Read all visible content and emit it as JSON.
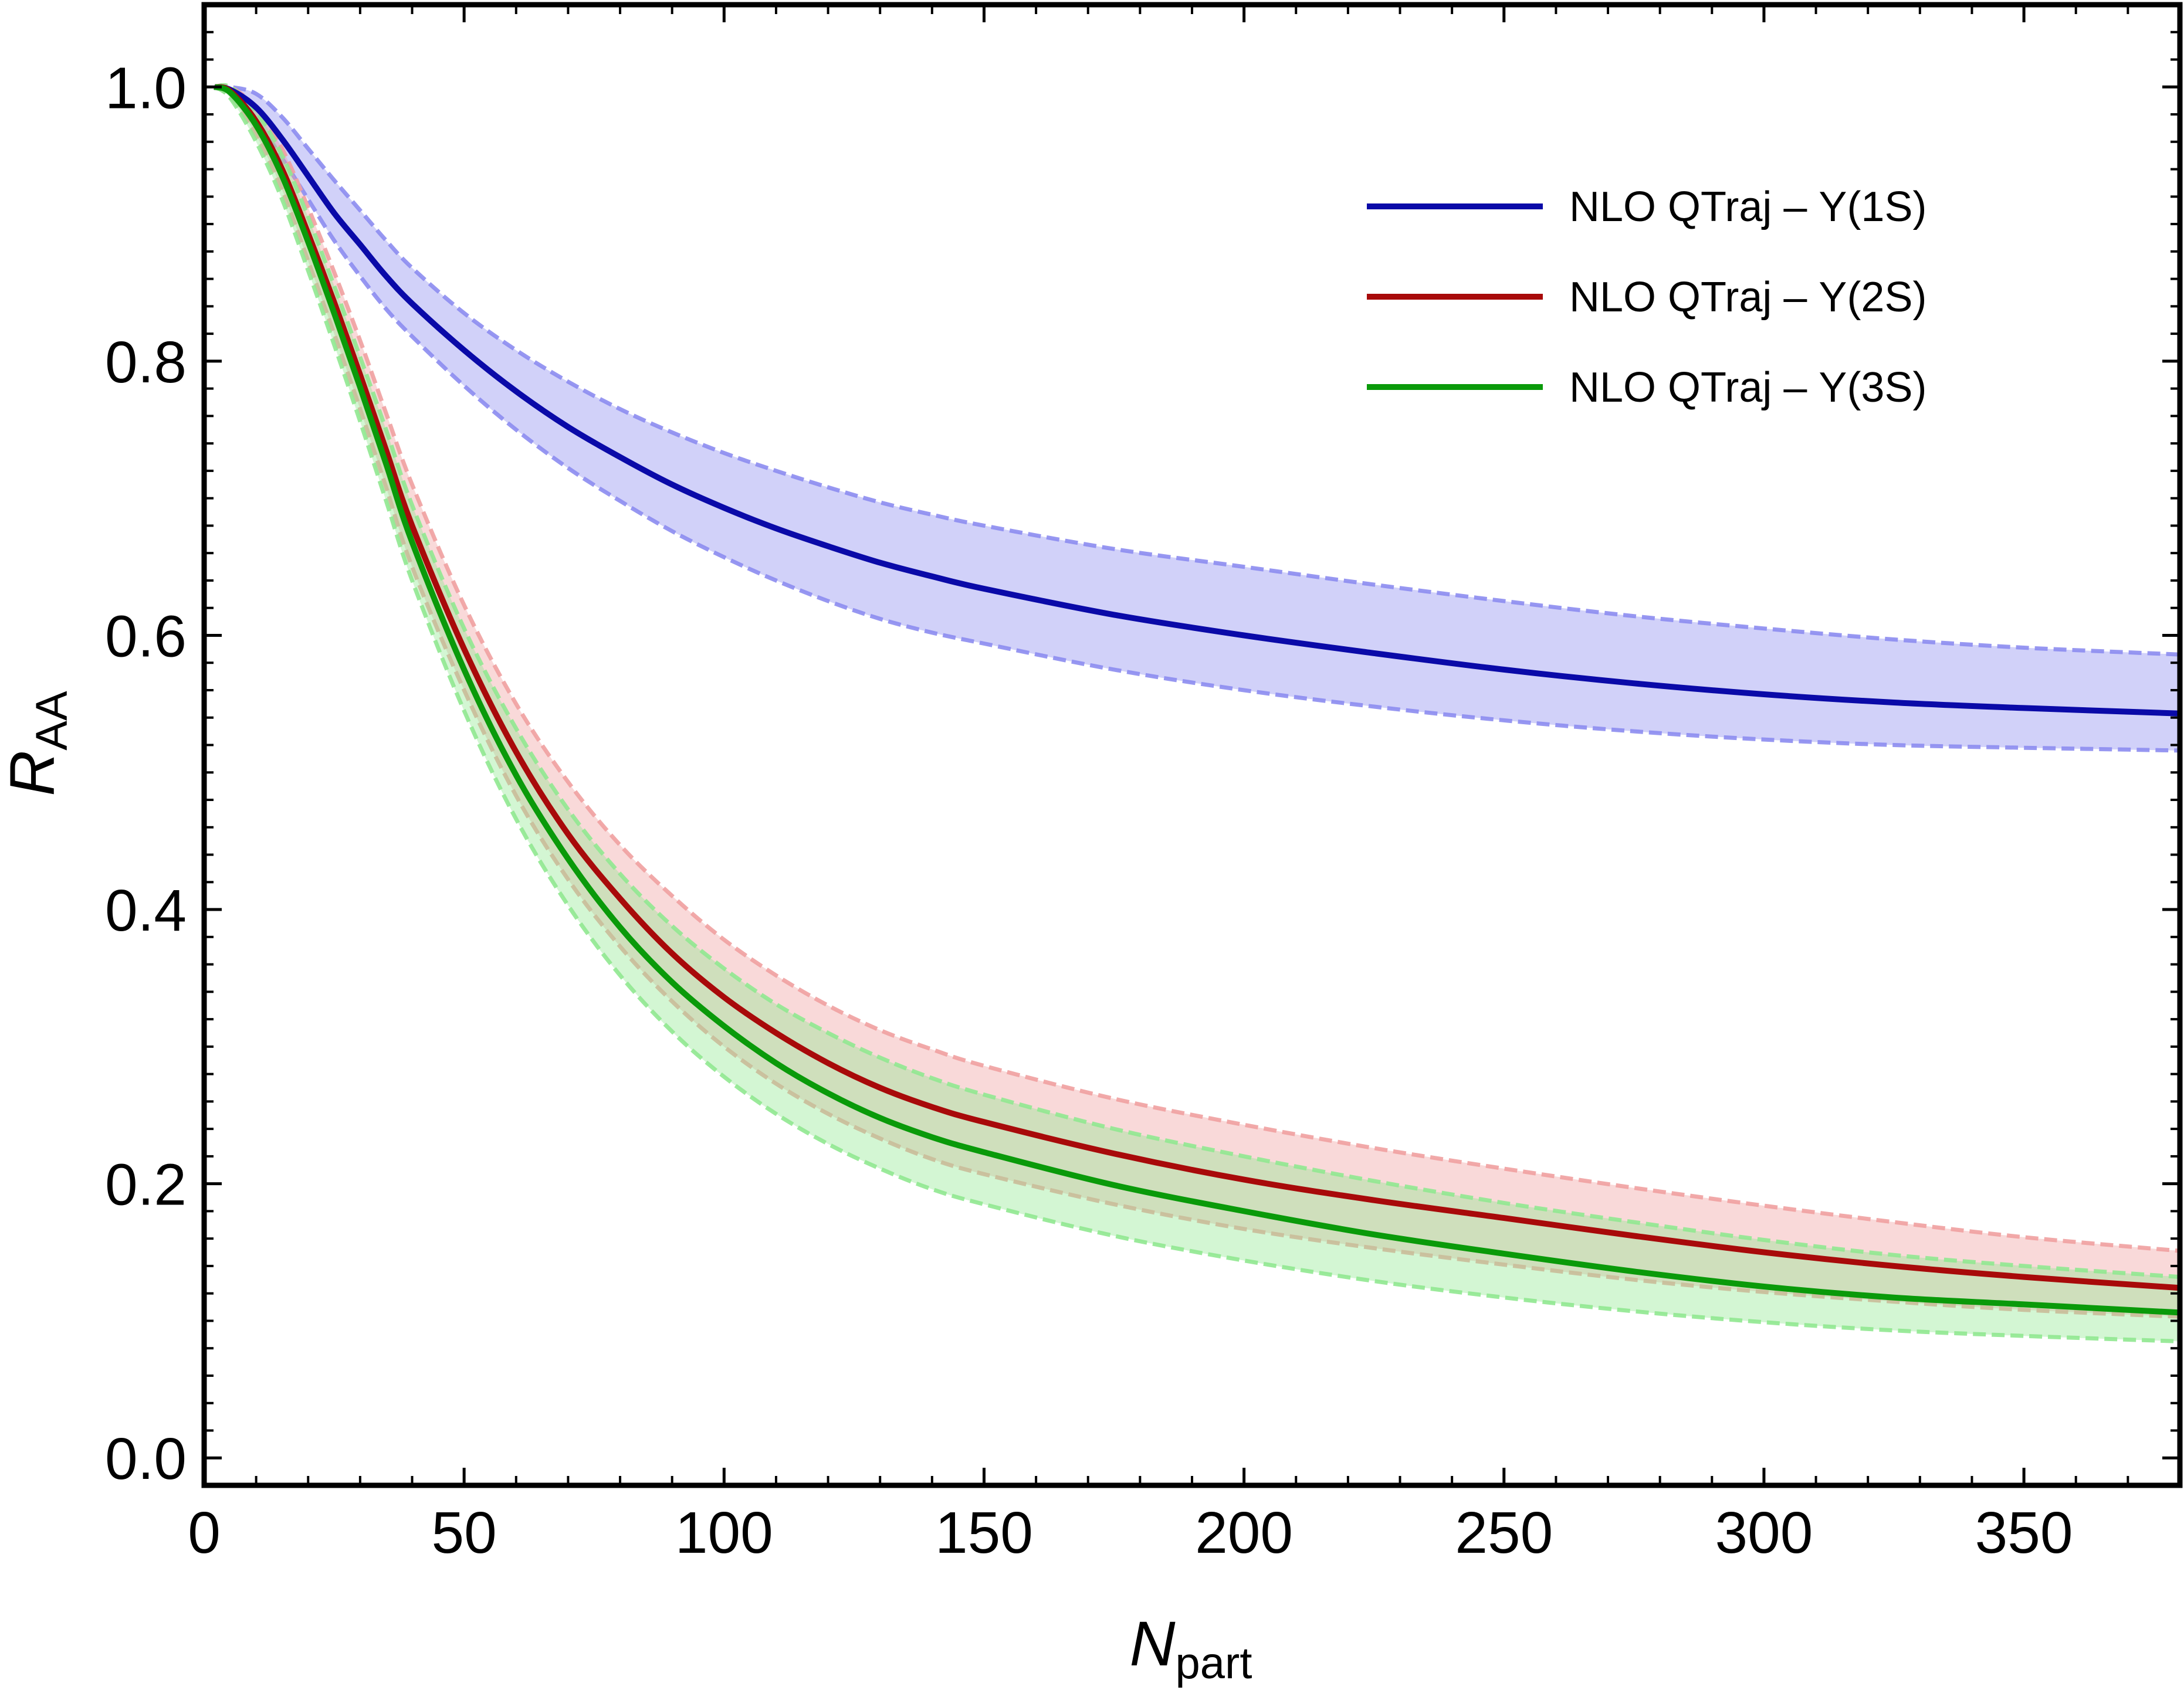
{
  "chart_data": {
    "type": "line",
    "xlabel": "N",
    "xlabel_subscript": "part",
    "ylabel": "R",
    "ylabel_subscript": "AA",
    "xlim": [
      0,
      380
    ],
    "ylim": [
      -0.02,
      1.06
    ],
    "x_ticks": [
      0,
      50,
      100,
      150,
      200,
      250,
      300,
      350
    ],
    "x_tick_labels": [
      "0",
      "50",
      "100",
      "150",
      "200",
      "250",
      "300",
      "350"
    ],
    "y_ticks": [
      0.0,
      0.2,
      0.4,
      0.6,
      0.8,
      1.0
    ],
    "y_tick_labels": [
      "0.0",
      "0.2",
      "0.4",
      "0.6",
      "0.8",
      "1.0"
    ],
    "grid": false,
    "legend_position": "top-right",
    "x": [
      2,
      5,
      10,
      15,
      20,
      25,
      30,
      35,
      40,
      50,
      60,
      70,
      80,
      90,
      100,
      110,
      120,
      130,
      140,
      150,
      175,
      200,
      225,
      250,
      275,
      300,
      325,
      350,
      380
    ],
    "series": [
      {
        "name": "NLO QTraj – Υ(1S)",
        "color": "#0a0aa8",
        "band_color": "#8c8cf0",
        "values": [
          1.0,
          0.998,
          0.985,
          0.962,
          0.935,
          0.908,
          0.885,
          0.862,
          0.842,
          0.808,
          0.778,
          0.752,
          0.73,
          0.71,
          0.693,
          0.678,
          0.665,
          0.653,
          0.643,
          0.634,
          0.615,
          0.6,
          0.587,
          0.575,
          0.565,
          0.557,
          0.551,
          0.547,
          0.543
        ],
        "band_upper": [
          1.0,
          1.0,
          0.995,
          0.978,
          0.955,
          0.932,
          0.91,
          0.888,
          0.868,
          0.835,
          0.808,
          0.785,
          0.765,
          0.748,
          0.733,
          0.72,
          0.708,
          0.697,
          0.688,
          0.68,
          0.663,
          0.65,
          0.637,
          0.625,
          0.614,
          0.605,
          0.597,
          0.591,
          0.586
        ],
        "band_lower": [
          1.0,
          0.995,
          0.975,
          0.948,
          0.918,
          0.888,
          0.862,
          0.838,
          0.818,
          0.782,
          0.75,
          0.722,
          0.698,
          0.676,
          0.657,
          0.64,
          0.625,
          0.612,
          0.602,
          0.594,
          0.575,
          0.56,
          0.548,
          0.538,
          0.53,
          0.524,
          0.52,
          0.518,
          0.516
        ]
      },
      {
        "name": "NLO QTraj – Υ(2S)",
        "color": "#a80a0a",
        "band_color": "#f0a0a0",
        "values": [
          1.0,
          0.997,
          0.975,
          0.94,
          0.893,
          0.843,
          0.79,
          0.735,
          0.68,
          0.59,
          0.515,
          0.455,
          0.408,
          0.368,
          0.336,
          0.31,
          0.288,
          0.27,
          0.256,
          0.245,
          0.222,
          0.203,
          0.188,
          0.175,
          0.162,
          0.15,
          0.14,
          0.132,
          0.124
        ],
        "band_upper": [
          1.0,
          1.0,
          0.985,
          0.955,
          0.912,
          0.865,
          0.815,
          0.762,
          0.71,
          0.622,
          0.55,
          0.493,
          0.447,
          0.41,
          0.378,
          0.352,
          0.33,
          0.312,
          0.298,
          0.286,
          0.262,
          0.243,
          0.226,
          0.211,
          0.197,
          0.184,
          0.172,
          0.161,
          0.151
        ],
        "band_lower": [
          1.0,
          0.993,
          0.965,
          0.925,
          0.873,
          0.82,
          0.765,
          0.708,
          0.65,
          0.56,
          0.483,
          0.422,
          0.373,
          0.333,
          0.3,
          0.273,
          0.251,
          0.233,
          0.218,
          0.207,
          0.185,
          0.167,
          0.153,
          0.141,
          0.13,
          0.121,
          0.114,
          0.108,
          0.103
        ]
      },
      {
        "name": "NLO QTraj – Υ(3S)",
        "color": "#0a9a0a",
        "band_color": "#90e890",
        "values": [
          1.0,
          0.996,
          0.972,
          0.935,
          0.887,
          0.835,
          0.781,
          0.725,
          0.668,
          0.575,
          0.498,
          0.437,
          0.387,
          0.347,
          0.315,
          0.288,
          0.266,
          0.248,
          0.234,
          0.223,
          0.199,
          0.18,
          0.163,
          0.149,
          0.136,
          0.125,
          0.117,
          0.112,
          0.106
        ],
        "band_upper": [
          1.0,
          1.0,
          0.982,
          0.95,
          0.905,
          0.855,
          0.803,
          0.75,
          0.695,
          0.605,
          0.532,
          0.473,
          0.426,
          0.388,
          0.357,
          0.331,
          0.31,
          0.292,
          0.277,
          0.265,
          0.24,
          0.22,
          0.202,
          0.186,
          0.172,
          0.159,
          0.148,
          0.14,
          0.132
        ],
        "band_lower": [
          1.0,
          0.992,
          0.96,
          0.918,
          0.866,
          0.812,
          0.756,
          0.698,
          0.64,
          0.545,
          0.466,
          0.403,
          0.352,
          0.311,
          0.278,
          0.251,
          0.229,
          0.211,
          0.196,
          0.185,
          0.162,
          0.144,
          0.129,
          0.117,
          0.107,
          0.099,
          0.093,
          0.089,
          0.085
        ]
      }
    ]
  }
}
